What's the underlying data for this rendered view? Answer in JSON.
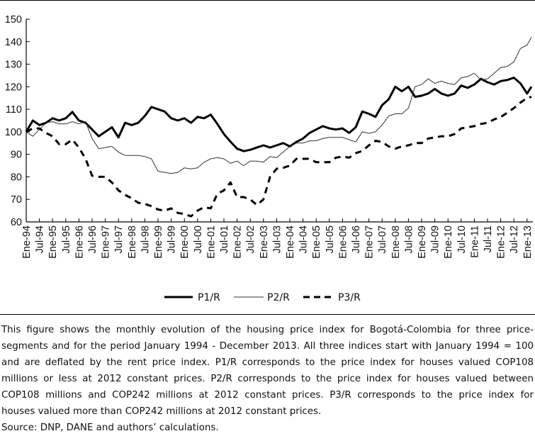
{
  "chart_data": {
    "type": "line",
    "title": "",
    "xlabel": "",
    "ylabel": "",
    "ylim": [
      60,
      150
    ],
    "yticks": [
      60,
      70,
      80,
      90,
      100,
      110,
      120,
      130,
      140,
      150
    ],
    "grid": false,
    "legend_position": "bottom",
    "xtick_labels": [
      "Ene-94",
      "Jul-94",
      "Ene-95",
      "Jul-95",
      "Ene-96",
      "Jul-96",
      "Ene-97",
      "Jul-97",
      "Ene-98",
      "Jul-98",
      "Ene-99",
      "Jul-99",
      "Ene-00",
      "Jul-00",
      "Ene-01",
      "Jul-01",
      "Ene-02",
      "Jul-02",
      "Ene-03",
      "Jul-03",
      "Ene-04",
      "Jul-04",
      "Ene-05",
      "Jul-05",
      "Ene-06",
      "Jul-06",
      "Ene-07",
      "Jul-07",
      "Ene-08",
      "Jul-08",
      "Ene-09",
      "Jul-09",
      "Ene-10",
      "Jul-10",
      "Ene-11",
      "Jul-11",
      "Ene-12",
      "Jul-12",
      "Ene-13"
    ],
    "x": [
      "1994-01",
      "1994-04",
      "1994-07",
      "1994-10",
      "1995-01",
      "1995-04",
      "1995-07",
      "1995-10",
      "1996-01",
      "1996-04",
      "1996-07",
      "1996-10",
      "1997-01",
      "1997-04",
      "1997-07",
      "1997-10",
      "1998-01",
      "1998-04",
      "1998-07",
      "1998-10",
      "1999-01",
      "1999-04",
      "1999-07",
      "1999-10",
      "2000-01",
      "2000-04",
      "2000-07",
      "2000-10",
      "2001-01",
      "2001-04",
      "2001-07",
      "2001-10",
      "2002-01",
      "2002-04",
      "2002-07",
      "2002-10",
      "2003-01",
      "2003-04",
      "2003-07",
      "2003-10",
      "2004-01",
      "2004-04",
      "2004-07",
      "2004-10",
      "2005-01",
      "2005-04",
      "2005-07",
      "2005-10",
      "2006-01",
      "2006-04",
      "2006-07",
      "2006-10",
      "2007-01",
      "2007-04",
      "2007-07",
      "2007-10",
      "2008-01",
      "2008-04",
      "2008-07",
      "2008-10",
      "2009-01",
      "2009-04",
      "2009-07",
      "2009-10",
      "2010-01",
      "2010-04",
      "2010-07",
      "2010-10",
      "2011-01",
      "2011-04",
      "2011-07",
      "2011-10",
      "2012-01",
      "2012-04",
      "2012-07",
      "2012-10",
      "2013-01",
      "2013-03"
    ],
    "series": [
      {
        "name": "P1/R",
        "style": "thick-solid",
        "color": "#000000",
        "values": [
          100,
          105,
          103,
          104,
          106,
          105,
          106,
          108.8,
          105,
          104,
          101,
          98,
          100,
          102,
          97.5,
          104,
          103,
          104,
          107,
          111,
          110,
          109,
          106,
          105,
          106,
          104,
          106.6,
          106,
          107.6,
          103.5,
          99,
          95.6,
          92.5,
          91.4,
          92,
          93,
          94,
          93,
          94,
          95,
          93.5,
          95.5,
          97,
          99.5,
          101,
          102.5,
          101.5,
          101,
          101.5,
          99.5,
          102,
          109,
          108,
          106.6,
          111.8,
          114.4,
          120,
          118,
          120,
          115.5,
          116,
          117,
          119,
          117,
          116,
          117,
          120.5,
          119.5,
          121,
          123.5,
          122,
          121,
          122.5,
          123,
          124,
          121.5,
          117,
          120
        ]
      },
      {
        "name": "P2/R",
        "style": "thin-solid",
        "color": "#333333",
        "values": [
          100,
          98,
          101,
          104,
          104.5,
          103.5,
          103.5,
          104.5,
          103.5,
          104.5,
          97,
          92.5,
          93,
          93.5,
          91,
          89.5,
          89.5,
          89.5,
          89,
          88,
          82.5,
          82,
          81.5,
          82,
          84,
          83.5,
          84,
          86.5,
          88,
          88.5,
          88,
          86,
          87,
          85,
          87,
          87,
          86.5,
          89,
          88.5,
          91,
          93.5,
          95,
          95,
          96,
          96,
          97,
          97.5,
          97.5,
          97.5,
          96.5,
          95.5,
          100,
          99.3,
          100,
          103,
          107,
          108,
          108,
          110.5,
          120,
          121,
          123.5,
          121.5,
          122.5,
          121.5,
          121,
          124,
          124.5,
          126,
          123,
          123.5,
          126,
          128.5,
          129,
          131,
          137,
          138.5,
          142
        ]
      },
      {
        "name": "P3/R",
        "style": "thick-dashed",
        "color": "#000000",
        "values": [
          100,
          101.5,
          101.5,
          99.5,
          98,
          94.5,
          94.5,
          96.5,
          93,
          88,
          80.5,
          80,
          80,
          77.5,
          74,
          72,
          70.5,
          68.5,
          68,
          67,
          65.5,
          65,
          66,
          64,
          63.5,
          62.5,
          65,
          66.5,
          66,
          72.5,
          74,
          77.5,
          71,
          71,
          70,
          67.5,
          70,
          80,
          83.6,
          84,
          85,
          88,
          88,
          88,
          86.5,
          86.5,
          86.5,
          88.5,
          89,
          88.5,
          90.5,
          91.5,
          94,
          96,
          95.5,
          93.5,
          92.5,
          93.5,
          94,
          95,
          95,
          97,
          97.5,
          98,
          98,
          99,
          101.5,
          102,
          102.5,
          103.5,
          104,
          105.5,
          106.5,
          108.5,
          110.5,
          113,
          115,
          115.5
        ]
      }
    ]
  },
  "legend": {
    "items": [
      "P1/R",
      "P2/R",
      "P3/R"
    ]
  },
  "caption": {
    "lines": [
      "This figure shows the monthly evolution of the housing price index for Bogotá-Colombia for three price-",
      "segments and for the period January 1994 - December 2013. All three indices start with January 1994 = 100",
      "and are deflated by the rent price index. P1/R corresponds to the price index for houses valued COP108",
      "millions or less at 2012 constant prices. P2/R corresponds to the price index for houses valued between",
      "COP108 millions and COP242 millions at 2012 constant prices. P3/R corresponds to the price index for",
      "houses valued more than COP242 millions at 2012 constant prices."
    ],
    "source": "Source: DNP, DANE and authors’ calculations."
  }
}
